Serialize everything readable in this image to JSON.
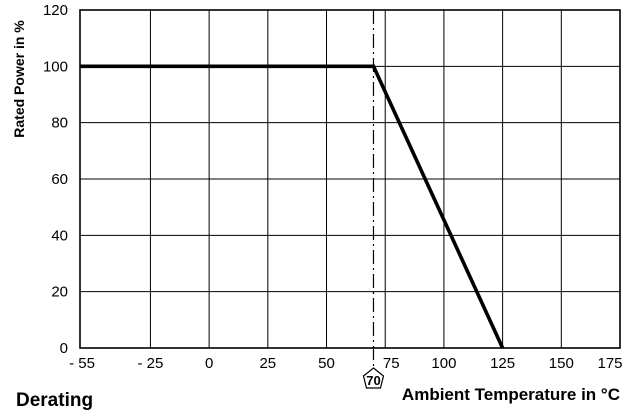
{
  "chart_data": {
    "type": "line",
    "caption": "Derating",
    "xlabel": "Ambient Temperature in °C",
    "ylabel": "Rated Power in %",
    "xlim": [
      -55,
      175
    ],
    "ylim": [
      0,
      120
    ],
    "x_tick_labels": [
      "- 55",
      "- 25",
      "0",
      "25",
      "50",
      "75",
      "100",
      "125",
      "150",
      "175"
    ],
    "y_tick_labels": [
      "0",
      "20",
      "40",
      "60",
      "80",
      "100",
      "120"
    ],
    "grid": true,
    "series": [
      {
        "x": [
          -55,
          70,
          125
        ],
        "y": [
          100,
          100,
          0
        ]
      }
    ],
    "reference_line": {
      "x": 70,
      "label": "70",
      "style": "dashed"
    }
  }
}
